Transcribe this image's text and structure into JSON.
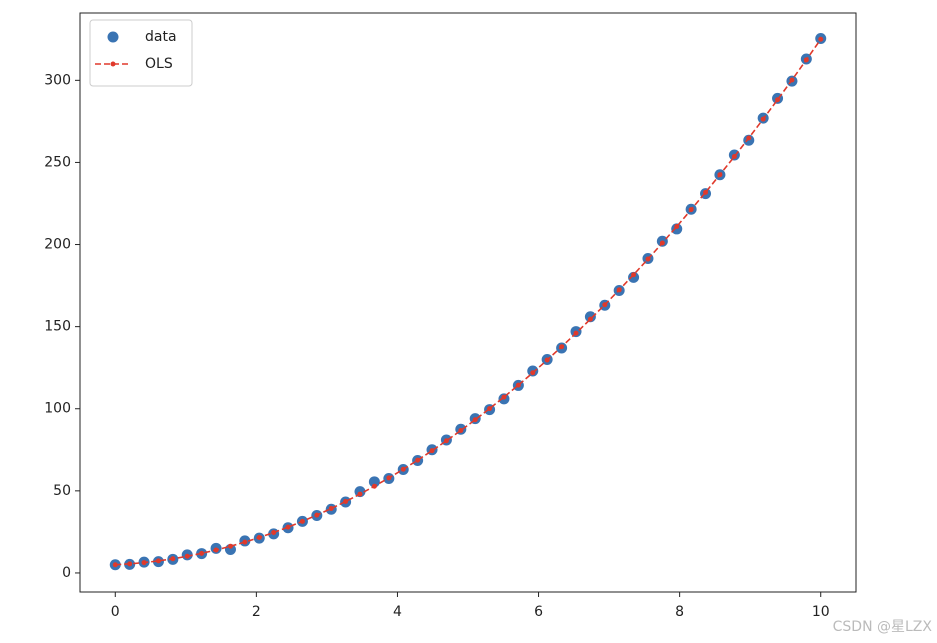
{
  "chart_data": {
    "type": "scatter-line",
    "x": [
      0,
      0.204,
      0.408,
      0.612,
      0.816,
      1.02,
      1.224,
      1.429,
      1.633,
      1.837,
      2.041,
      2.245,
      2.449,
      2.653,
      2.857,
      3.061,
      3.265,
      3.469,
      3.673,
      3.878,
      4.082,
      4.286,
      4.49,
      4.694,
      4.898,
      5.102,
      5.306,
      5.51,
      5.714,
      5.918,
      6.122,
      6.327,
      6.531,
      6.735,
      6.939,
      7.143,
      7.347,
      7.551,
      7.755,
      7.959,
      8.163,
      8.367,
      8.571,
      8.776,
      8.98,
      9.184,
      9.388,
      9.592,
      9.796,
      10
    ],
    "series": [
      {
        "name": "data",
        "color": "#3a74b3",
        "mode": "markers",
        "values": [
          5,
          5.2,
          6.6,
          6.9,
          8.3,
          11,
          11.8,
          15,
          14.3,
          19.5,
          21.2,
          23.8,
          27.5,
          31.4,
          35,
          38.8,
          43.2,
          49.5,
          55.5,
          57.5,
          63,
          68.5,
          75,
          81,
          87.5,
          94,
          99.5,
          106,
          114.2,
          123,
          130,
          137,
          147,
          156,
          163,
          172,
          180,
          191.5,
          202,
          209.5,
          221.5,
          231,
          242.5,
          254.5,
          263.5,
          277,
          289,
          299.5,
          313,
          325.5
        ]
      },
      {
        "name": "OLS",
        "color": "#e0392b",
        "mode": "dashed-line-markers",
        "values": [
          5.0,
          5.53,
          6.32,
          7.35,
          8.63,
          10.16,
          11.94,
          13.98,
          16.26,
          18.8,
          21.58,
          24.61,
          27.9,
          31.42,
          35.2,
          39.23,
          43.51,
          48.04,
          52.82,
          57.87,
          63.15,
          68.68,
          74.46,
          80.49,
          86.77,
          93.3,
          100.08,
          107.11,
          114.4,
          121.91,
          129.69,
          137.75,
          146.03,
          154.55,
          163.33,
          172.36,
          181.63,
          191.16,
          200.94,
          210.96,
          221.24,
          231.76,
          242.53,
          253.61,
          264.88,
          276.41,
          288.19,
          300.21,
          312.48,
          325.0
        ]
      }
    ],
    "xlim": [
      -0.5,
      10.5
    ],
    "ylim": [
      -11.6,
      341
    ],
    "xticks": [
      0,
      2,
      4,
      6,
      8,
      10
    ],
    "yticks": [
      0,
      50,
      100,
      150,
      200,
      250,
      300
    ],
    "legend": "upper left",
    "watermark": "CSDN @星LZX"
  }
}
